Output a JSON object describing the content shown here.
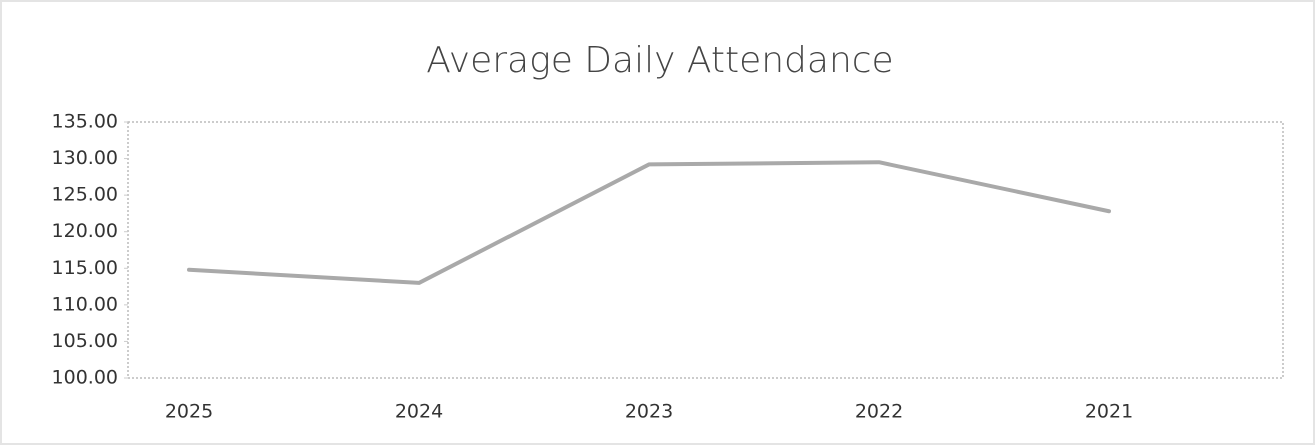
{
  "chart_data": {
    "type": "line",
    "title": "Average Daily Attendance",
    "categories": [
      "2025",
      "2024",
      "2023",
      "2022",
      "2021"
    ],
    "series": [
      {
        "name": "Average Daily Attendance",
        "color": "#a9a9a9",
        "values": [
          114.8,
          113.0,
          129.2,
          129.5,
          122.8
        ]
      }
    ],
    "ylim": [
      100,
      135
    ],
    "yticks": [
      {
        "value": 100,
        "label": "100.00"
      },
      {
        "value": 105,
        "label": "105.00"
      },
      {
        "value": 110,
        "label": "110.00"
      },
      {
        "value": 115,
        "label": "115.00"
      },
      {
        "value": 120,
        "label": "120.00"
      },
      {
        "value": 125,
        "label": "125.00"
      },
      {
        "value": 130,
        "label": "130.00"
      },
      {
        "value": 135,
        "label": "135.00"
      }
    ]
  }
}
